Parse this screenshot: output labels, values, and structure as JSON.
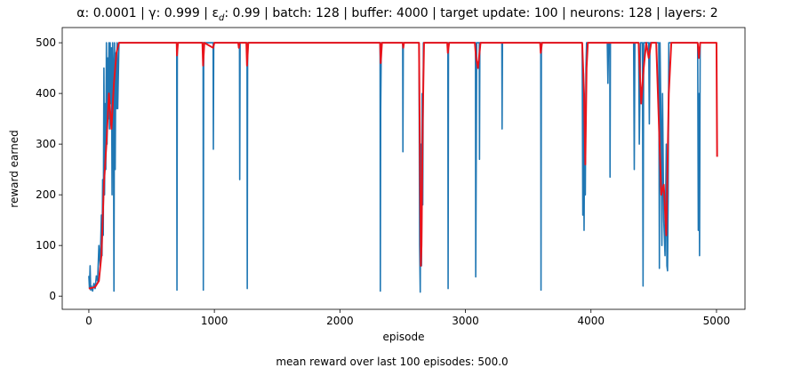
{
  "chart_data": {
    "type": "line",
    "title": [
      "α: 0.0001 | γ: 0.999 | ε",
      "d",
      ": 0.99 | batch: 128 | buffer: 4000 | target update: 100 | neurons: 128 | layers: 2"
    ],
    "xlabel": "episode",
    "ylabel": "reward earned",
    "annotation": "mean reward over last 100 episodes: 500.0",
    "xlim": [
      -212,
      5227
    ],
    "ylim": [
      -26,
      530
    ],
    "xticks": [
      0,
      1000,
      2000,
      3000,
      4000,
      5000
    ],
    "yticks": [
      0,
      100,
      200,
      300,
      400,
      500
    ],
    "series": [
      {
        "color": "#1f77b4",
        "x": [
          0,
          5,
          10,
          15,
          20,
          30,
          40,
          50,
          60,
          70,
          80,
          90,
          100,
          105,
          110,
          115,
          120,
          125,
          130,
          135,
          140,
          145,
          150,
          155,
          160,
          165,
          170,
          175,
          180,
          185,
          190,
          195,
          200,
          205,
          210,
          215,
          220,
          225,
          230,
          240,
          700,
          702,
          705,
          910,
          912,
          915,
          990,
          992,
          995,
          1200,
          1202,
          1205,
          1260,
          1262,
          1265,
          2320,
          2322,
          2325,
          2330,
          2500,
          2502,
          2505,
          2630,
          2635,
          2640,
          2645,
          2650,
          2655,
          2660,
          2665,
          2860,
          2862,
          2865,
          3080,
          3082,
          3090,
          3110,
          3112,
          3115,
          3290,
          3292,
          3295,
          3600,
          3602,
          3605,
          3930,
          3935,
          3940,
          3945,
          3950,
          3955,
          3960,
          3965,
          4130,
          4135,
          4140,
          4150,
          4152,
          4155,
          4340,
          4345,
          4350,
          4380,
          4385,
          4395,
          4410,
          4415,
          4420,
          4460,
          4465,
          4470,
          4540,
          4545,
          4550,
          4560,
          4565,
          4570,
          4580,
          4590,
          4600,
          4605,
          4610,
          4615,
          4620,
          4850,
          4855,
          4860,
          4865,
          4870,
          4880
        ],
        "values": [
          40,
          15,
          60,
          12,
          20,
          10,
          25,
          15,
          40,
          30,
          100,
          60,
          160,
          80,
          230,
          120,
          450,
          200,
          380,
          250,
          500,
          300,
          470,
          350,
          500,
          330,
          500,
          380,
          490,
          200,
          500,
          450,
          10,
          500,
          250,
          480,
          370,
          500,
          370,
          500,
          500,
          12,
          500,
          500,
          12,
          500,
          500,
          290,
          500,
          500,
          230,
          500,
          500,
          15,
          500,
          500,
          10,
          370,
          500,
          500,
          285,
          500,
          500,
          100,
          8,
          300,
          60,
          400,
          180,
          500,
          500,
          15,
          500,
          500,
          38,
          500,
          500,
          270,
          500,
          500,
          330,
          500,
          500,
          12,
          500,
          500,
          160,
          440,
          130,
          350,
          200,
          450,
          500,
          500,
          420,
          500,
          500,
          235,
          500,
          500,
          250,
          500,
          500,
          300,
          500,
          500,
          20,
          500,
          500,
          340,
          500,
          500,
          55,
          500,
          300,
          100,
          400,
          150,
          80,
          300,
          60,
          50,
          200,
          500,
          500,
          130,
          400,
          80,
          500,
          500
        ]
      },
      {
        "color": "#e8141c",
        "x": [
          0,
          50,
          80,
          100,
          120,
          140,
          160,
          180,
          200,
          220,
          240,
          700,
          702,
          710,
          905,
          910,
          920,
          990,
          1000,
          1190,
          1195,
          1200,
          1255,
          1260,
          1270,
          2320,
          2325,
          2335,
          2500,
          2505,
          2510,
          2630,
          2640,
          2645,
          2650,
          2660,
          2670,
          2855,
          2860,
          2870,
          3075,
          3085,
          3100,
          3120,
          3595,
          3600,
          3610,
          3930,
          3945,
          3955,
          3965,
          3975,
          4380,
          4400,
          4420,
          4440,
          4460,
          4480,
          4520,
          4540,
          4560,
          4580,
          4600,
          4620,
          4640,
          4850,
          4860,
          4870,
          5000,
          5005
        ],
        "values": [
          15,
          18,
          30,
          80,
          220,
          300,
          400,
          330,
          420,
          480,
          500,
          500,
          475,
          500,
          500,
          455,
          500,
          490,
          500,
          500,
          490,
          500,
          500,
          455,
          500,
          500,
          460,
          500,
          500,
          490,
          500,
          500,
          200,
          60,
          100,
          350,
          500,
          500,
          480,
          500,
          500,
          470,
          450,
          500,
          500,
          480,
          500,
          500,
          400,
          260,
          450,
          500,
          500,
          380,
          450,
          500,
          470,
          500,
          500,
          350,
          200,
          220,
          120,
          400,
          500,
          500,
          470,
          500,
          500,
          275
        ]
      }
    ]
  }
}
